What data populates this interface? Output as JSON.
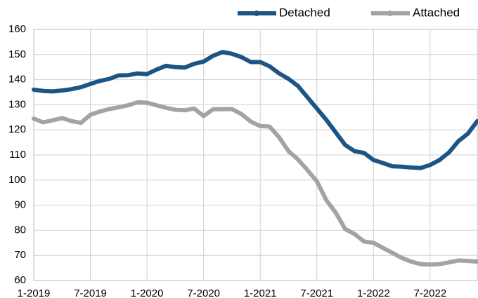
{
  "chart_data": {
    "type": "line",
    "categories": [
      "1-2019",
      null,
      null,
      null,
      null,
      null,
      "7-2019",
      null,
      null,
      null,
      null,
      null,
      "1-2020",
      null,
      null,
      null,
      null,
      null,
      "7-2020",
      null,
      null,
      null,
      null,
      null,
      "1-2021",
      null,
      null,
      null,
      null,
      null,
      "7-2021",
      null,
      null,
      null,
      null,
      null,
      "1-2022",
      null,
      null,
      null,
      null,
      null,
      "7-2022",
      null,
      null,
      null,
      null,
      null
    ],
    "series": [
      {
        "name": "Detached",
        "color": "#1c5584",
        "values": [
          136,
          135.5,
          135.3,
          135.7,
          136.2,
          137,
          138.3,
          139.5,
          140.3,
          141.7,
          141.8,
          142.5,
          142.2,
          144,
          145.5,
          145,
          144.8,
          146.3,
          147.2,
          149.5,
          151,
          150.3,
          149,
          147,
          147,
          145.3,
          142.5,
          140.3,
          137.5,
          133,
          128.5,
          124,
          119,
          114,
          111.5,
          110.8,
          108,
          106.8,
          105.5,
          105.3,
          105,
          104.8,
          106,
          108,
          111,
          115.5,
          118.5,
          123.5
        ]
      },
      {
        "name": "Attached",
        "color": "#a3a3a3",
        "values": [
          124.5,
          123,
          123.8,
          124.7,
          123.5,
          122.8,
          126,
          127.3,
          128.3,
          129,
          129.8,
          131,
          130.8,
          129.8,
          128.8,
          128,
          127.8,
          128.5,
          125.5,
          128.2,
          128.2,
          128.3,
          126.3,
          123.3,
          121.5,
          121.3,
          117,
          111.5,
          108.2,
          104,
          99.5,
          92,
          87,
          80.5,
          78.5,
          75.5,
          75,
          73,
          71,
          69,
          67.5,
          66.5,
          66.3,
          66.5,
          67.2,
          68,
          67.8,
          67.5
        ]
      }
    ],
    "ylim": [
      60,
      160
    ],
    "yticks": [
      60,
      70,
      80,
      90,
      100,
      110,
      120,
      130,
      140,
      150,
      160
    ],
    "grid": true
  }
}
